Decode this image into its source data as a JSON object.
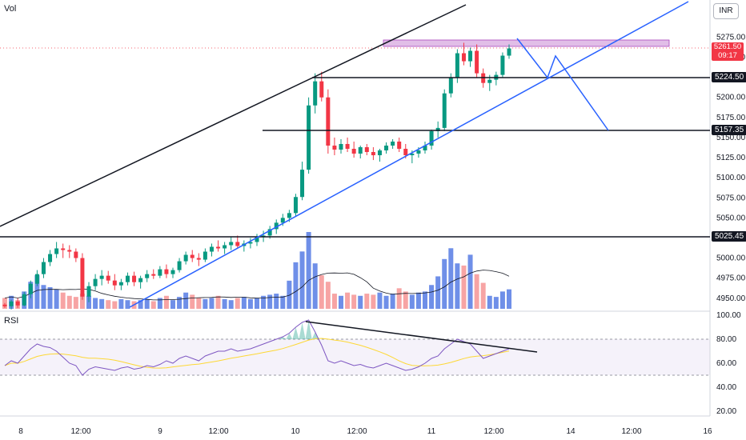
{
  "labels": {
    "volume": "Vol",
    "rsi": "RSI",
    "currency": "INR"
  },
  "price_axis": [
    "5275.00",
    "5250.00",
    "5200.00",
    "5175.00",
    "5150.00",
    "5125.00",
    "5100.00",
    "5075.00",
    "5050.00",
    "5000.00",
    "4975.00",
    "4950.00"
  ],
  "price_axis_values": [
    5275,
    5250,
    5200,
    5175,
    5150,
    5125,
    5100,
    5075,
    5050,
    5000,
    4975,
    4950
  ],
  "rsi_axis": [
    "100.00",
    "80.00",
    "60.00",
    "40.00",
    "20.00"
  ],
  "rsi_axis_values": [
    100,
    80,
    60,
    40,
    20
  ],
  "time_axis": [
    "8",
    "12:00",
    "9",
    "12:00",
    "10",
    "12:00",
    "11",
    "12:00",
    "14",
    "12:00",
    "16"
  ],
  "current_price": {
    "value": "5261.50",
    "countdown": "09:17",
    "color": "#f23645"
  },
  "levels": [
    {
      "label": "5224.50",
      "value": 5224.5
    },
    {
      "label": "5157.35",
      "value": 5157.35
    },
    {
      "label": "5025.45",
      "value": 5025.45
    }
  ],
  "colors": {
    "up": "#089981",
    "down": "#f23645",
    "vol_up": "#6f8fe8",
    "vol_down": "#f7a4a4",
    "trend": "#2962ff",
    "line": "#131722",
    "zone": "#e1bee7",
    "rsi": "#7e57c2",
    "rsi_ma": "#fdd835"
  },
  "chart_data": {
    "type": "candlestick",
    "symbol_currency": "INR",
    "ylim": [
      4935,
      5340
    ],
    "rsi_ylim": [
      15,
      100
    ],
    "rsi_band": [
      30,
      80
    ],
    "candles": [
      [
        4942,
        4944,
        4938,
        4940
      ],
      [
        4940,
        4948,
        4936,
        4946
      ],
      [
        4946,
        4950,
        4938,
        4941
      ],
      [
        4941,
        4958,
        4940,
        4955
      ],
      [
        4955,
        4972,
        4950,
        4968
      ],
      [
        4968,
        4985,
        4965,
        4980
      ],
      [
        4980,
        5000,
        4975,
        4995
      ],
      [
        4995,
        5010,
        4990,
        5005
      ],
      [
        5005,
        5020,
        5000,
        5012
      ],
      [
        5012,
        5018,
        5000,
        5010
      ],
      [
        5010,
        5016,
        5000,
        5008
      ],
      [
        5008,
        5012,
        4995,
        5000
      ],
      [
        5000,
        5006,
        4948,
        4952
      ],
      [
        4952,
        4970,
        4945,
        4965
      ],
      [
        4965,
        4980,
        4960,
        4974
      ],
      [
        4974,
        4985,
        4966,
        4978
      ],
      [
        4978,
        4984,
        4968,
        4972
      ],
      [
        4972,
        4980,
        4960,
        4966
      ],
      [
        4966,
        4974,
        4960,
        4970
      ],
      [
        4970,
        4982,
        4966,
        4978
      ],
      [
        4978,
        4983,
        4965,
        4970
      ],
      [
        4970,
        4978,
        4962,
        4975
      ],
      [
        4975,
        4985,
        4970,
        4980
      ],
      [
        4980,
        4986,
        4974,
        4978
      ],
      [
        4978,
        4990,
        4975,
        4986
      ],
      [
        4986,
        4992,
        4975,
        4980
      ],
      [
        4980,
        4988,
        4975,
        4985
      ],
      [
        4985,
        5000,
        4982,
        4996
      ],
      [
        4996,
        5008,
        4992,
        5004
      ],
      [
        5004,
        5010,
        4995,
        5000
      ],
      [
        5000,
        5006,
        4990,
        4998
      ],
      [
        4998,
        5012,
        4995,
        5008
      ],
      [
        5008,
        5018,
        5002,
        5014
      ],
      [
        5014,
        5022,
        5008,
        5012
      ],
      [
        5012,
        5020,
        5005,
        5016
      ],
      [
        5016,
        5026,
        5010,
        5020
      ],
      [
        5020,
        5028,
        5012,
        5015
      ],
      [
        5015,
        5022,
        5008,
        5018
      ],
      [
        5018,
        5025,
        5012,
        5020
      ],
      [
        5020,
        5030,
        5015,
        5026
      ],
      [
        5026,
        5034,
        5020,
        5028
      ],
      [
        5028,
        5040,
        5024,
        5036
      ],
      [
        5036,
        5048,
        5030,
        5044
      ],
      [
        5044,
        5055,
        5040,
        5050
      ],
      [
        5050,
        5060,
        5045,
        5056
      ],
      [
        5056,
        5080,
        5052,
        5076
      ],
      [
        5076,
        5120,
        5072,
        5110
      ],
      [
        5110,
        5200,
        5105,
        5190
      ],
      [
        5190,
        5230,
        5180,
        5220
      ],
      [
        5220,
        5232,
        5195,
        5200
      ],
      [
        5200,
        5210,
        5130,
        5140
      ],
      [
        5140,
        5150,
        5128,
        5135
      ],
      [
        5135,
        5148,
        5130,
        5142
      ],
      [
        5142,
        5150,
        5132,
        5136
      ],
      [
        5136,
        5145,
        5125,
        5130
      ],
      [
        5130,
        5140,
        5124,
        5138
      ],
      [
        5138,
        5142,
        5128,
        5132
      ],
      [
        5132,
        5138,
        5122,
        5128
      ],
      [
        5128,
        5136,
        5120,
        5134
      ],
      [
        5134,
        5144,
        5130,
        5140
      ],
      [
        5140,
        5148,
        5136,
        5145
      ],
      [
        5145,
        5150,
        5132,
        5136
      ],
      [
        5136,
        5142,
        5124,
        5128
      ],
      [
        5128,
        5134,
        5118,
        5130
      ],
      [
        5130,
        5138,
        5125,
        5134
      ],
      [
        5134,
        5145,
        5130,
        5140
      ],
      [
        5140,
        5160,
        5135,
        5158
      ],
      [
        5158,
        5170,
        5150,
        5162
      ],
      [
        5162,
        5210,
        5158,
        5205
      ],
      [
        5205,
        5230,
        5200,
        5225
      ],
      [
        5225,
        5260,
        5218,
        5255
      ],
      [
        5255,
        5268,
        5240,
        5245
      ],
      [
        5245,
        5262,
        5238,
        5258
      ],
      [
        5258,
        5266,
        5225,
        5230
      ],
      [
        5230,
        5236,
        5212,
        5218
      ],
      [
        5218,
        5228,
        5208,
        5222
      ],
      [
        5222,
        5232,
        5215,
        5228
      ],
      [
        5228,
        5256,
        5225,
        5252
      ],
      [
        5252,
        5266,
        5248,
        5261
      ]
    ],
    "volume": [
      1,
      1.2,
      0.8,
      1.6,
      2.5,
      3.1,
      2.2,
      2.0,
      1.8,
      1.5,
      1.2,
      1.1,
      1.4,
      1.2,
      1.0,
      0.9,
      0.8,
      0.7,
      0.9,
      0.8,
      0.7,
      0.8,
      0.9,
      0.7,
      1.0,
      1.2,
      0.8,
      1.1,
      1.5,
      1.3,
      1.0,
      0.9,
      1.0,
      1.2,
      0.9,
      0.8,
      1.0,
      1.1,
      0.9,
      1.0,
      1.2,
      1.3,
      1.4,
      1.2,
      2.6,
      4.3,
      5.3,
      7.1,
      4.2,
      3.1,
      2.5,
      1.4,
      1.2,
      1.5,
      1.3,
      1.2,
      1.4,
      1.3,
      1.5,
      1.2,
      1.4,
      1.9,
      1.6,
      1.3,
      1.5,
      1.6,
      2.2,
      3.0,
      4.6,
      5.6,
      4.2,
      4.0,
      5.0,
      3.2,
      2.4,
      1.2,
      1.1,
      1.6,
      1.8
    ],
    "rsi": [
      58,
      62,
      60,
      66,
      72,
      76,
      74,
      73,
      70,
      65,
      60,
      58,
      50,
      55,
      57,
      56,
      55,
      54,
      56,
      57,
      55,
      56,
      58,
      57,
      59,
      62,
      60,
      64,
      66,
      64,
      62,
      66,
      68,
      70,
      70,
      72,
      70,
      71,
      72,
      74,
      76,
      78,
      80,
      82,
      85,
      90,
      94,
      96,
      86,
      75,
      62,
      60,
      62,
      60,
      58,
      59,
      57,
      56,
      58,
      60,
      58,
      56,
      54,
      55,
      57,
      60,
      64,
      66,
      72,
      76,
      80,
      78,
      76,
      70,
      64,
      66,
      68,
      70,
      72
    ],
    "annotations": [
      "5224.50",
      "5157.35",
      "5025.45"
    ]
  }
}
